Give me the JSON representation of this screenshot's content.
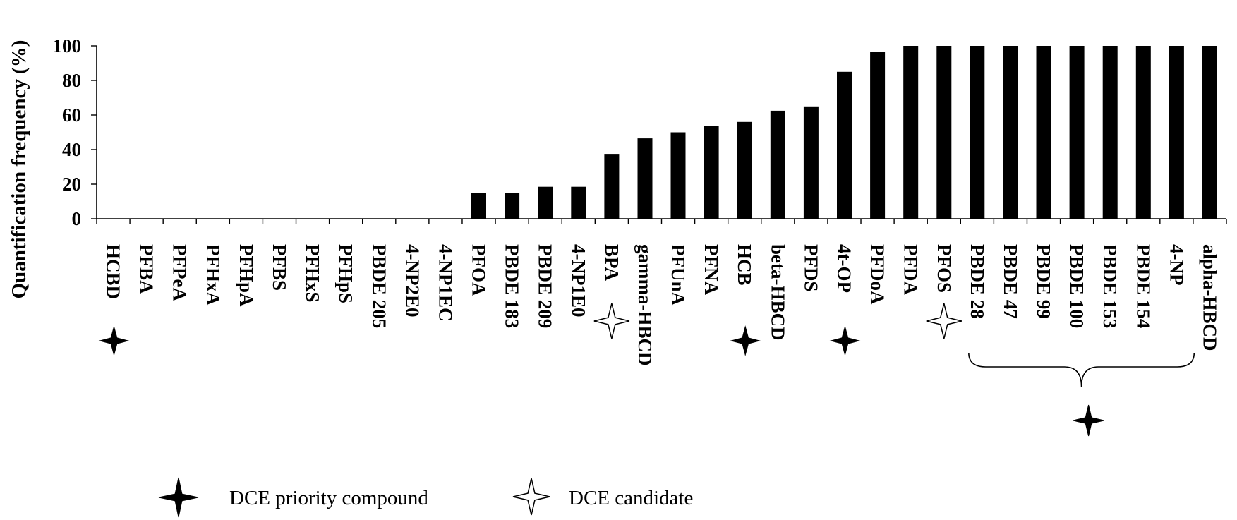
{
  "chart_data": {
    "type": "bar",
    "title": "",
    "xlabel": "",
    "ylabel": "Quantification frequency (%)",
    "ylim": [
      0,
      100
    ],
    "yticks": [
      0,
      20,
      40,
      60,
      80,
      100
    ],
    "grid": false,
    "categories": [
      "HCBD",
      "PFBA",
      "PFPeA",
      "PFHxA",
      "PFHpA",
      "PFBS",
      "PFHxS",
      "PFHpS",
      "PBDE 205",
      "4-NP2E0",
      "4-NP1EC",
      "PFOA",
      "PBDE 183",
      "PBDE 209",
      "4-NP1E0",
      "BPA",
      "gamma-HBCD",
      "PFUnA",
      "PFNA",
      "HCB",
      "beta-HBCD",
      "PFDS",
      "4t-OP",
      "PFDoA",
      "PFDA",
      "PFOS",
      "PBDE 28",
      "PBDE 47",
      "PBDE 99",
      "PBDE 100",
      "PBDE 153",
      "PBDE 154",
      "4-NP",
      "alpha-HBCD"
    ],
    "values": [
      0,
      0,
      0,
      0,
      0,
      0,
      0,
      0,
      0,
      0,
      0,
      15,
      15,
      18.5,
      18.5,
      37.5,
      46.5,
      50,
      53.5,
      56,
      62.5,
      65,
      85,
      96.5,
      100,
      100,
      100,
      100,
      100,
      100,
      100,
      100,
      100,
      100
    ],
    "bar_color": "#000000",
    "markers": {
      "priority": [
        "HCBD",
        "HCB",
        "4t-OP"
      ],
      "candidate": [
        "BPA",
        "PFOS"
      ],
      "priority_group": [
        "PBDE 28",
        "PBDE 47",
        "PBDE 99",
        "PBDE 100",
        "PBDE 153",
        "PBDE 154"
      ]
    },
    "legend": {
      "placement": "bottom",
      "items": [
        {
          "symbol": "filled-star-icon",
          "label": "DCE priority compound"
        },
        {
          "symbol": "hollow-star-icon",
          "label": "DCE candidate"
        }
      ]
    }
  }
}
